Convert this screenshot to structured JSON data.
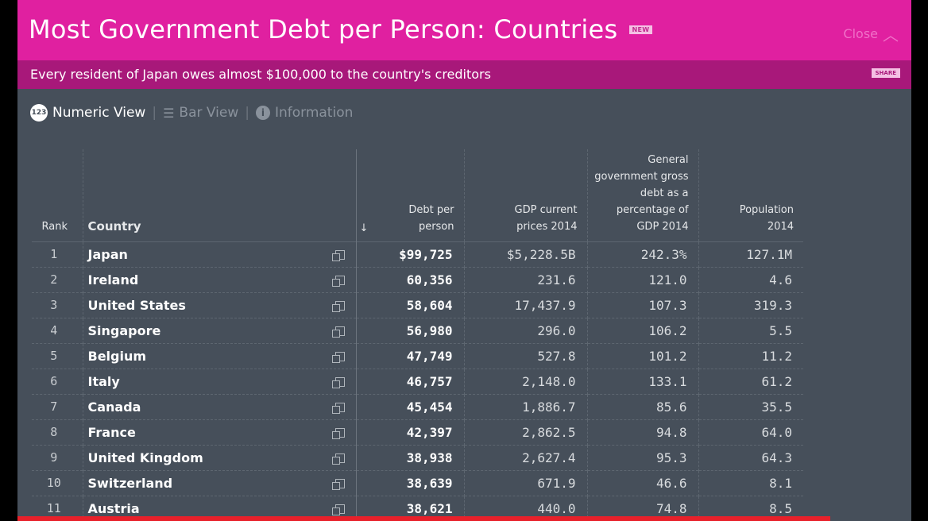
{
  "header": {
    "title": "Most Government Debt per Person: Countries",
    "new_badge": "NEW",
    "close_label": "Close"
  },
  "subheader": {
    "text": "Every resident of Japan owes almost $100,000 to the country's creditors",
    "share_badge": "SHARE"
  },
  "views": {
    "numeric": "Numeric View",
    "bar": "Bar View",
    "info": "Information"
  },
  "columns": {
    "rank": "Rank",
    "country": "Country",
    "sort_arrow": "↓",
    "debt": "Debt per person",
    "gdp": "GDP current prices 2014",
    "pct": "General government gross debt as a percentage of GDP 2014",
    "pop": "Population 2014"
  },
  "rows": [
    [
      "1",
      "Japan",
      "$99,725",
      "$5,228.5B",
      "242.3%",
      "127.1M"
    ],
    [
      "2",
      "Ireland",
      "60,356",
      "231.6",
      "121.0",
      "4.6"
    ],
    [
      "3",
      "United States",
      "58,604",
      "17,437.9",
      "107.3",
      "319.3"
    ],
    [
      "4",
      "Singapore",
      "56,980",
      "296.0",
      "106.2",
      "5.5"
    ],
    [
      "5",
      "Belgium",
      "47,749",
      "527.8",
      "101.2",
      "11.2"
    ],
    [
      "6",
      "Italy",
      "46,757",
      "2,148.0",
      "133.1",
      "61.2"
    ],
    [
      "7",
      "Canada",
      "45,454",
      "1,886.7",
      "85.6",
      "35.5"
    ],
    [
      "8",
      "France",
      "42,397",
      "2,862.5",
      "94.8",
      "64.0"
    ],
    [
      "9",
      "United Kingdom",
      "38,938",
      "2,627.4",
      "95.3",
      "64.3"
    ],
    [
      "10",
      "Switzerland",
      "38,639",
      "671.9",
      "46.6",
      "8.1"
    ],
    [
      "11",
      "Austria",
      "38,621",
      "440.0",
      "74.8",
      "8.5"
    ]
  ],
  "colors": {
    "header": "#e020a0",
    "subheader": "#a8187a",
    "panel": "#464f5a",
    "bottom_bar": "#e8202a"
  }
}
